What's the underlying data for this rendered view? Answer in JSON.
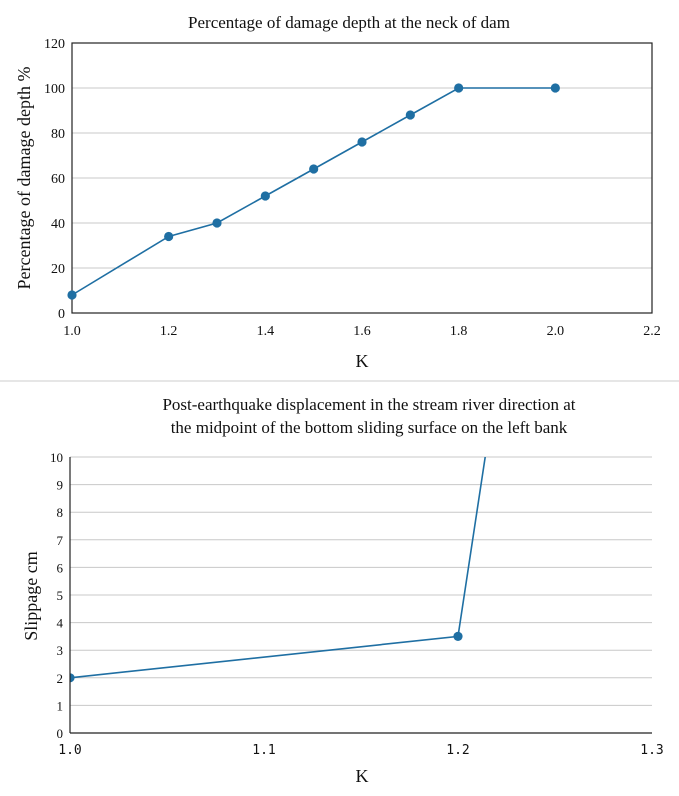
{
  "chart_data": [
    {
      "type": "line",
      "title": "Percentage of damage depth at the neck of dam",
      "xlabel": "K",
      "ylabel": "Percentage of damage depth %",
      "xlim": [
        1.0,
        2.2
      ],
      "ylim": [
        0,
        120
      ],
      "xticks": [
        "1.0",
        "1.2",
        "1.4",
        "1.6",
        "1.8",
        "2.0",
        "2.2"
      ],
      "yticks": [
        "0",
        "20",
        "40",
        "60",
        "80",
        "100",
        "120"
      ],
      "grid": true,
      "series": [
        {
          "x": [
            1.0,
            1.2,
            1.3,
            1.4,
            1.5,
            1.6,
            1.7,
            1.8,
            2.0
          ],
          "y": [
            8,
            34,
            40,
            52,
            64,
            76,
            88,
            100,
            100
          ],
          "markers": [
            true,
            true,
            true,
            true,
            true,
            true,
            true,
            true,
            true
          ]
        }
      ],
      "color": "#1f6fa3"
    },
    {
      "type": "line",
      "title": "Post-earthquake displacement in the stream river direction at the midpoint of the bottom sliding surface on the left bank",
      "title_lines": [
        "Post-earthquake displacement in the stream river direction at",
        "the midpoint of the bottom sliding surface on the left bank"
      ],
      "xlabel": "K",
      "ylabel": "Slippage  cm",
      "xlim": [
        1.0,
        1.3
      ],
      "ylim": [
        0,
        10
      ],
      "xticks": [
        "1.0",
        "1.1",
        "1.2",
        "1.3"
      ],
      "yticks": [
        "0",
        "1",
        "2",
        "3",
        "4",
        "5",
        "6",
        "7",
        "8",
        "9",
        "10"
      ],
      "grid": true,
      "series": [
        {
          "x": [
            1.0,
            1.2,
            1.214
          ],
          "y": [
            2,
            3.5,
            10
          ],
          "markers": [
            true,
            true,
            false
          ]
        }
      ],
      "color": "#1f6fa3"
    }
  ]
}
